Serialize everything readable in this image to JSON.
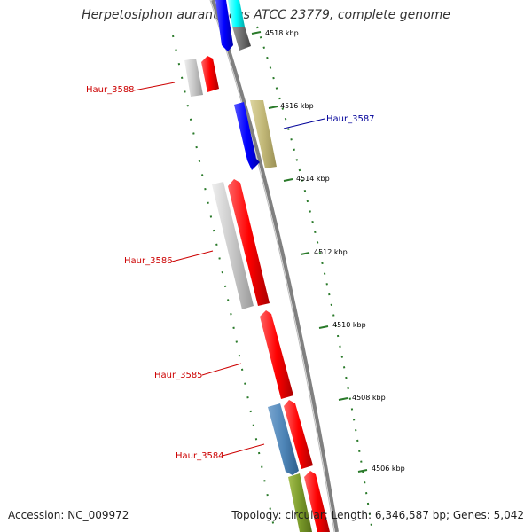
{
  "title": "Herpetosiphon aurantiacus ATCC 23779, complete genome",
  "footer": {
    "accession": "Accession: NC_009972",
    "summary": "Topology: circular; Length: 6,346,587 bp; Genes: 5,042"
  },
  "ticks": [
    "4518 kbp",
    "4516 kbp",
    "4514 kbp",
    "4512 kbp",
    "4510 kbp",
    "4508 kbp",
    "4506 kbp"
  ],
  "gene_labels": [
    {
      "name": "Haur_3588",
      "color": "#cc0000"
    },
    {
      "name": "Haur_3587",
      "color": "#000099"
    },
    {
      "name": "Haur_3586",
      "color": "#cc0000"
    },
    {
      "name": "Haur_3585",
      "color": "#cc0000"
    },
    {
      "name": "Haur_3584",
      "color": "#cc0000"
    }
  ],
  "colors": {
    "backbone": "#808080",
    "tick_mark": "#2a7a2a",
    "red_gene": "#ff0000",
    "blue_gene": "#0000ff",
    "grey_gene": "#c8c8c8",
    "olive_gene": "#c2b878",
    "steel_gene": "#4f86b8",
    "green_gene": "#7a9a2a",
    "cyan_gene": "#00ffff",
    "darkgrey_gene": "#707070"
  }
}
